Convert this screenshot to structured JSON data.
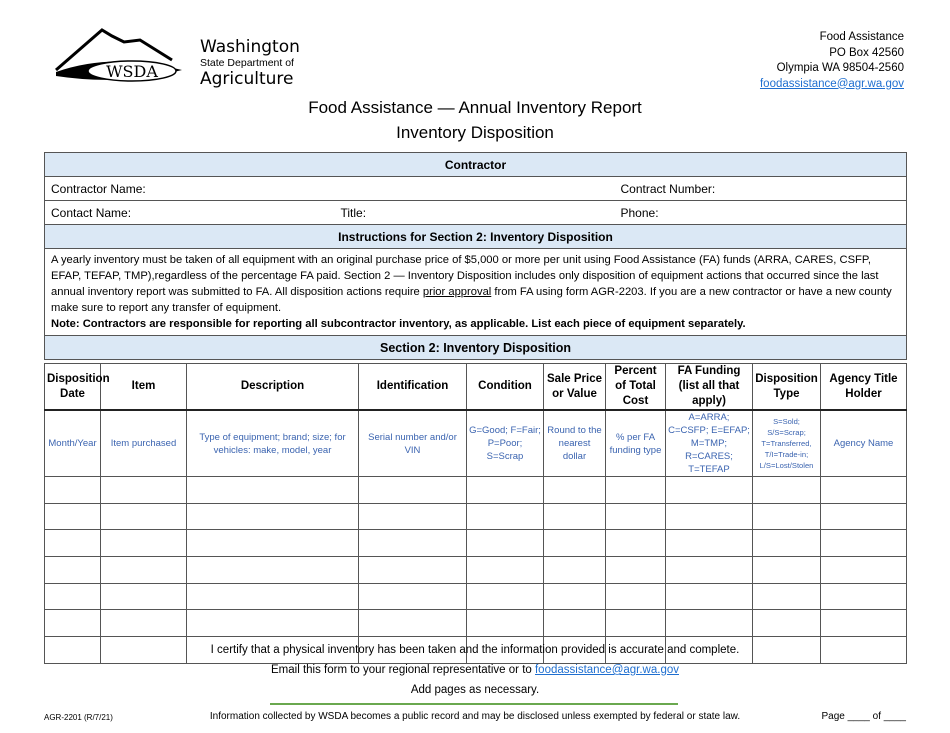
{
  "logo": {
    "text": "WSDA",
    "org_line1": "Washington",
    "org_line2": "State Department of",
    "org_line3": "Agriculture"
  },
  "address": {
    "name": "Food Assistance",
    "box": "PO Box 42560",
    "city": "Olympia WA  98504-2560",
    "email": "foodassistance@agr.wa.gov"
  },
  "title": {
    "line1": "Food Assistance — Annual Inventory Report",
    "line2": "Inventory Disposition"
  },
  "contractor": {
    "heading": "Contractor",
    "name_label": "Contractor Name:",
    "number_label": "Contract Number:",
    "contact_label": "Contact Name:",
    "title_label": "Title:",
    "phone_label": "Phone:"
  },
  "instructions": {
    "heading": "Instructions for Section 2: Inventory Disposition",
    "para_a": "A yearly inventory must be taken of all equipment with an original purchase price of $5,000 or more per unit using Food Assistance (FA) funds (ARRA, CARES, CSFP, EFAP, TEFAP, TMP),regardless of the percentage FA paid.  Section 2 — Inventory Disposition includes only disposition of equipment actions that occurred since the last annual inventory report was submitted to FA.  All disposition actions require ",
    "para_link": "prior approval",
    "para_b": " from FA using form AGR-2203.  If you are a new contractor or have a new county make sure to report any transfer of equipment.",
    "note": "Note: Contractors are responsible for reporting all subcontractor inventory, as applicable. List each piece of equipment separately."
  },
  "section2": {
    "heading": "Section 2: Inventory Disposition",
    "columns": [
      "Disposition Date",
      "Item",
      "Description",
      "Identification",
      "Condition",
      "Sale Price or Value",
      "Percent of Total Cost",
      "FA Funding (list all that apply)",
      "Disposition Type",
      "Agency Title Holder"
    ],
    "example": [
      "Month/Year",
      "Item purchased",
      "Type of equipment; brand; size; for vehicles: make, model, year",
      "Serial number and/or VIN",
      "G=Good; F=Fair; P=Poor; S=Scrap",
      "Round to the nearest dollar",
      "% per FA funding type",
      "A=ARRA; C=CSFP; E=EFAP; M=TMP; R=CARES; T=TEFAP",
      "S=Sold; S/S=Scrap; T=Transferred, T/I=Trade-in; L/S=Lost/Stolen",
      "Agency Name"
    ],
    "blank_rows": 7
  },
  "footer": {
    "certify": "I certify that a physical inventory has been taken and the information provided is accurate and complete.",
    "email_text": "Email this form to your regional representative or to ",
    "email": "foodassistance@agr.wa.gov",
    "add_pages": "Add pages as necessary.",
    "form_code": "AGR-2201 (R/7/21)",
    "disclaimer": "Information collected by WSDA becomes a public record and may be disclosed unless exempted by federal or state law.",
    "page": "Page ____ of ____"
  },
  "colors": {
    "header_bg": "#dbe8f5",
    "hint_text": "#3b64b0",
    "rule": "#6aa84f"
  }
}
